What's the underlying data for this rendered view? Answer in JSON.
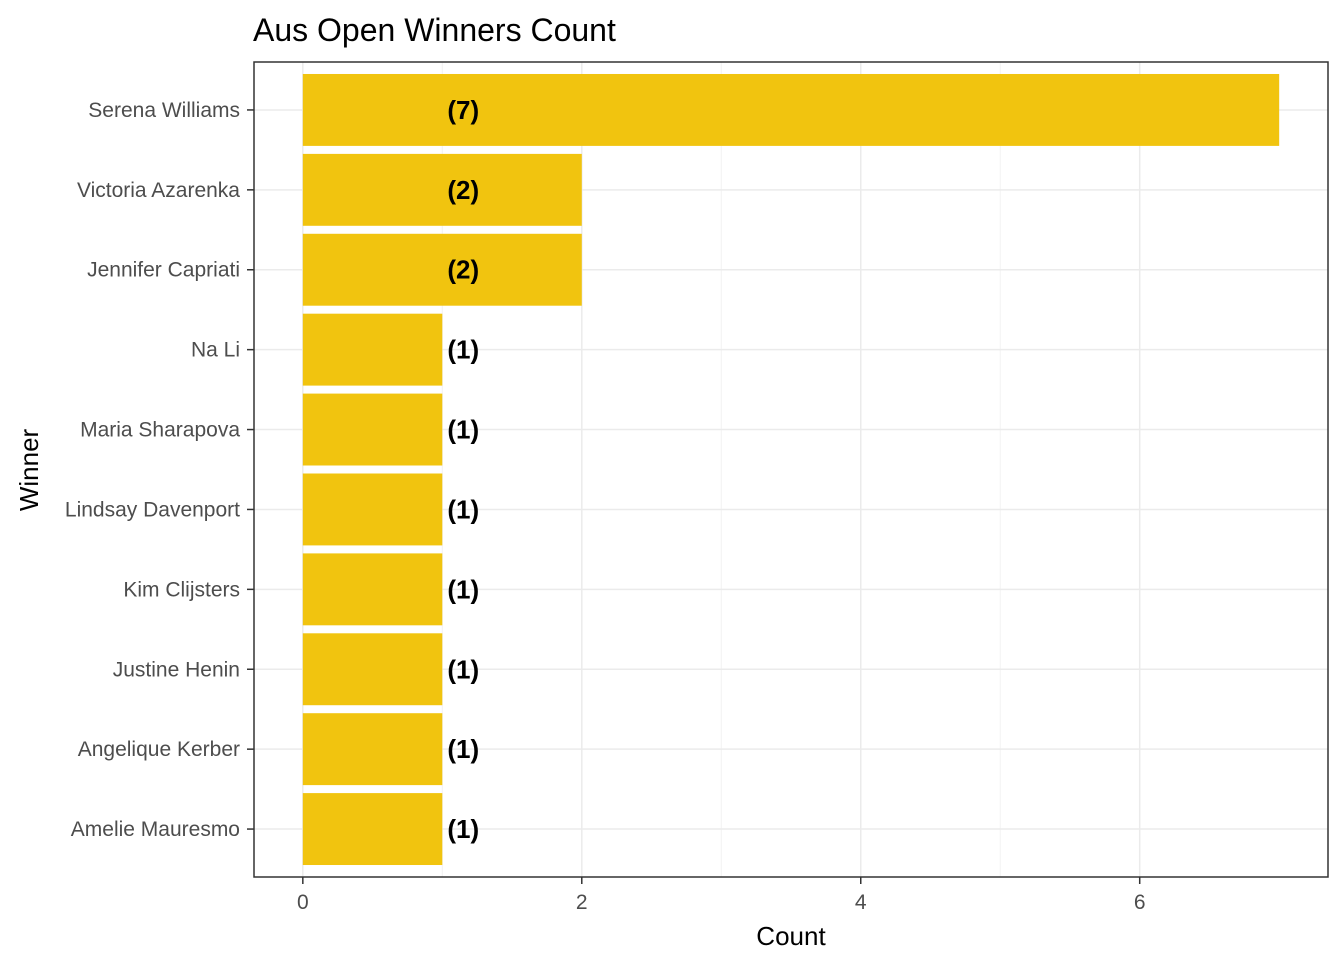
{
  "chart_data": {
    "type": "bar",
    "orientation": "horizontal",
    "title": "Aus Open Winners Count",
    "xlabel": "Count",
    "ylabel": "Winner",
    "categories": [
      "Serena Williams",
      "Victoria Azarenka",
      "Jennifer Capriati",
      "Na Li",
      "Maria Sharapova",
      "Lindsay Davenport",
      "Kim Clijsters",
      "Justine Henin",
      "Angelique Kerber",
      "Amelie Mauresmo"
    ],
    "values": [
      7,
      2,
      2,
      1,
      1,
      1,
      1,
      1,
      1,
      1
    ],
    "data_labels": [
      "(7)",
      "(2)",
      "(2)",
      "(1)",
      "(1)",
      "(1)",
      "(1)",
      "(1)",
      "(1)",
      "(1)"
    ],
    "xticks": [
      0,
      2,
      4,
      6
    ],
    "xlim": [
      -0.35,
      7.35
    ],
    "bar_color": "#F1C40F",
    "grid": true,
    "legend": "none"
  }
}
